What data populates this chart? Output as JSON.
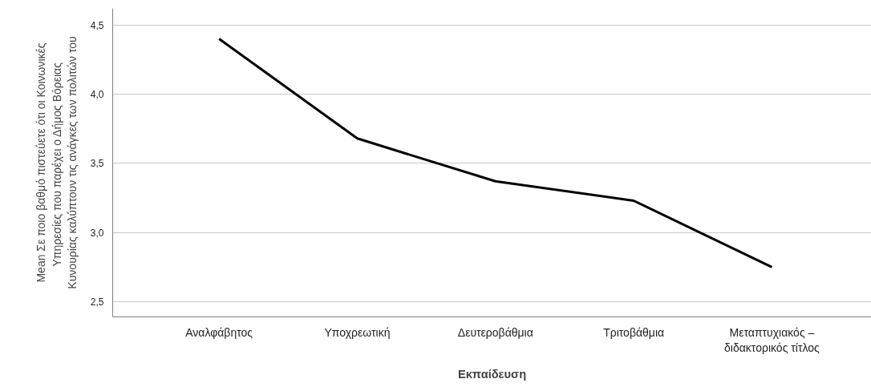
{
  "chart_data": {
    "type": "line",
    "xlabel": "Εκπαίδευση",
    "ylabel": "Mean Σε ποιο βαθμό πιστεύετε ότι οι Κοινωνικές Υπηρεσίες που παρέχει ο Δήμος  Βόρειας Κυνουρίας καλύπτουν τις ανάγκες των πολιτών του",
    "categories": [
      "Αναλφάβητος",
      "Υποχρεωτική",
      "Δευτεροβάθμια",
      "Τριτοβάθμια",
      "Μεταπτυχιακός – διδακτορικός τίτλος"
    ],
    "series": [
      {
        "color": "#000000",
        "values": [
          4.4,
          3.68,
          3.37,
          3.23,
          2.75
        ]
      }
    ],
    "ylim": [
      2.39,
      4.62
    ],
    "yticks": [
      {
        "value": 2.5,
        "label": "2,5"
      },
      {
        "value": 3.0,
        "label": "3,0"
      },
      {
        "value": 3.5,
        "label": "3,5"
      },
      {
        "value": 4.0,
        "label": "4,0"
      },
      {
        "value": 4.5,
        "label": "4,5"
      }
    ],
    "grid": "y",
    "line_style": "solid"
  }
}
